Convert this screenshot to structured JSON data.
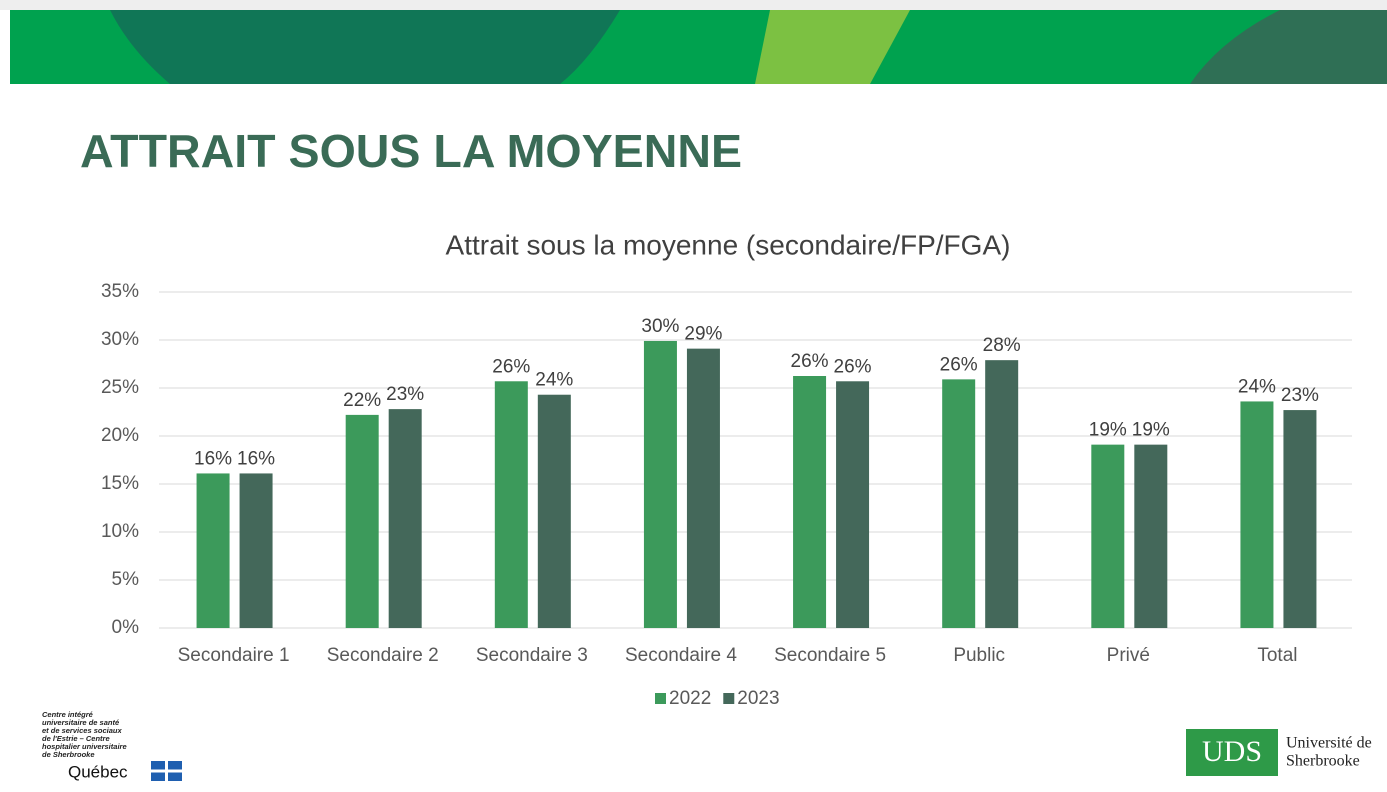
{
  "slide_title": "ATTRAIT SOUS LA MOYENNE",
  "chart_data": {
    "type": "bar",
    "title": "Attrait sous la moyenne (secondaire/FP/FGA)",
    "categories": [
      "Secondaire 1",
      "Secondaire 2",
      "Secondaire 3",
      "Secondaire 4",
      "Secondaire 5",
      "Public",
      "Privé",
      "Total"
    ],
    "series": [
      {
        "name": "2022",
        "color": "#3c9a5b",
        "values": [
          16.1,
          22.2,
          25.7,
          29.9,
          26.25,
          25.9,
          19.1,
          23.6
        ],
        "value_labels": [
          "16%",
          "22%",
          "26%",
          "30%",
          "26%",
          "26%",
          "19%",
          "24%"
        ]
      },
      {
        "name": "2023",
        "color": "#44685a",
        "values": [
          16.1,
          22.8,
          24.3,
          29.1,
          25.7,
          27.9,
          19.1,
          22.7
        ],
        "value_labels": [
          "16%",
          "23%",
          "24%",
          "29%",
          "26%",
          "28%",
          "19%",
          "23%"
        ]
      }
    ],
    "ylim": [
      0,
      35
    ],
    "yticks": [
      {
        "value": 0,
        "label": "0%"
      },
      {
        "value": 5,
        "label": "5%"
      },
      {
        "value": 10,
        "label": "10%"
      },
      {
        "value": 15,
        "label": "15%"
      },
      {
        "value": 20,
        "label": "20%"
      },
      {
        "value": 25,
        "label": "25%"
      },
      {
        "value": 30,
        "label": "30%"
      },
      {
        "value": 35,
        "label": "35%"
      }
    ],
    "grid": true,
    "legend": "bottom"
  },
  "logos": {
    "ciusss_lines": [
      "Centre intégré",
      "universitaire de santé",
      "et de services sociaux",
      "de l'Estrie – Centre",
      "hospitalier universitaire",
      "de Sherbrooke"
    ],
    "quebec": "Québec",
    "uds_mark": "UDS",
    "uds_lines": [
      "Université de",
      "Sherbrooke"
    ]
  }
}
